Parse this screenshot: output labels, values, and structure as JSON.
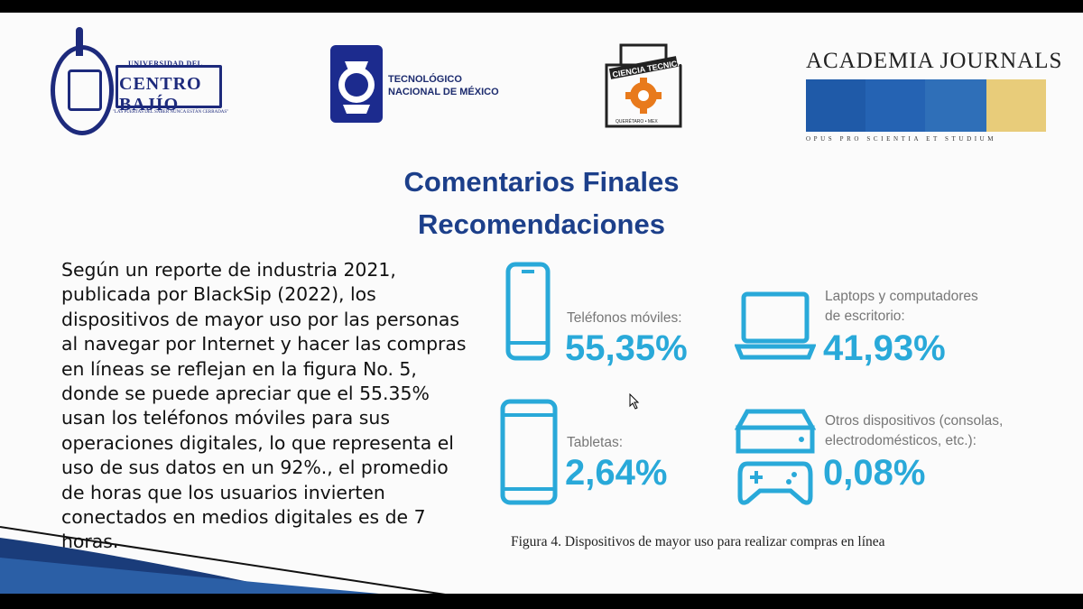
{
  "logos": {
    "ucb": {
      "top_line": "UNIVERSIDAD DEL",
      "name": "CENTRO BAJÍO",
      "motto": "\"LAS PUERTAS DEL SABER NUNCA ESTÁN CERRADAS\""
    },
    "tec": {
      "line1": "TECNOLÓGICO",
      "line2": "NACIONAL DE MÉXICO"
    },
    "ctq": {
      "banner": "CIENCIA TECNICA",
      "place": "QUERÉTARO • MEX"
    },
    "academia": {
      "title": "ACADEMIA JOURNALS",
      "motto": "OPUS PRO SCIENTIA ET STUDIUM",
      "colors": [
        "#1f5aa8",
        "#1f5aa8",
        "#2f6fb8",
        "#e8cc7a"
      ]
    }
  },
  "slide": {
    "title_line1": "Comentarios Finales",
    "title_line2": "Recomendaciones",
    "body": "Según un reporte de industria 2021, publicada por BlackSip (2022), los dispositivos de mayor uso por las personas al navegar por Internet y hacer las compras en líneas se reflejan en la figura No. 5, donde se puede apreciar que el 55.35% usan los teléfonos móviles para sus operaciones digitales, lo que representa el uso de sus datos en un 92%., el promedio de horas que los usuarios invierten conectados en medios digitales es de 7 horas."
  },
  "figure": {
    "items": [
      {
        "icon": "smartphone-icon",
        "label": "Teléfonos móviles:",
        "value": "55,35%"
      },
      {
        "icon": "laptop-icon",
        "label": "Laptops y computadores de escritorio:",
        "value": "41,93%"
      },
      {
        "icon": "tablet-icon",
        "label": "Tabletas:",
        "value": "2,64%"
      },
      {
        "icon": "console-icon",
        "label": "Otros dispositivos (consolas, electrodomésticos, etc.):",
        "value": "0,08%"
      }
    ],
    "accent": "#29a9d9",
    "caption": "Figura 4. Dispositivos de mayor uso para realizar compras en línea"
  }
}
